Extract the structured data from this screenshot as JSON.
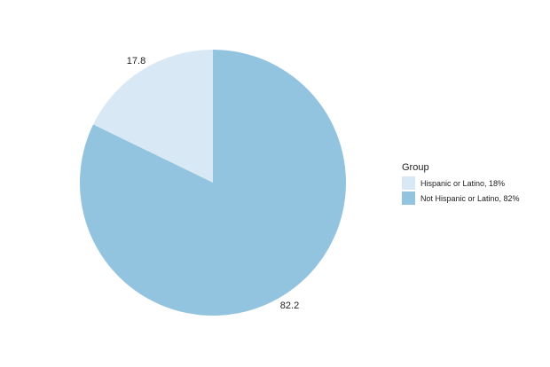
{
  "chart_data": {
    "type": "pie",
    "title": "",
    "start": "12 o'clock",
    "direction": "counterclockwise",
    "slices": [
      {
        "label": "17.8",
        "value": 17.8,
        "legend": "Hispanic or Latino, 18%",
        "color": "#d9e8f5"
      },
      {
        "label": "82.2",
        "value": 82.2,
        "legend": "Not Hispanic or Latino, 82%",
        "color": "#92c4df"
      }
    ],
    "legend": {
      "title": "Group",
      "placement": "right"
    }
  }
}
